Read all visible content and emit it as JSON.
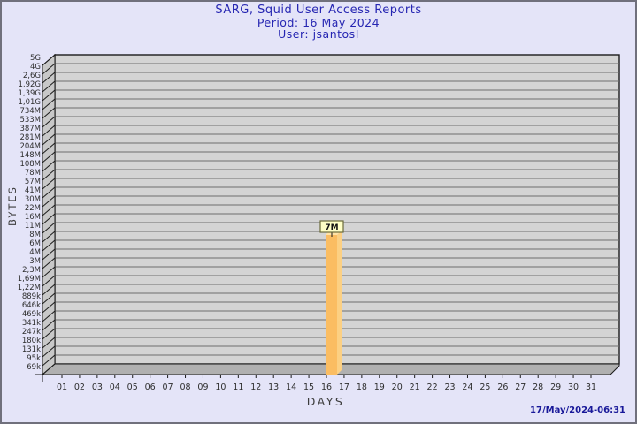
{
  "chart_data": {
    "type": "bar",
    "title": "SARG, Squid User Access Reports",
    "subtitle": "Period: 16 May 2024",
    "user_line": "User: jsantosI",
    "xlabel": "DAYS",
    "ylabel": "BYTES",
    "x_categories": [
      "01",
      "02",
      "03",
      "04",
      "05",
      "06",
      "07",
      "08",
      "09",
      "10",
      "11",
      "12",
      "13",
      "14",
      "15",
      "16",
      "17",
      "18",
      "19",
      "20",
      "21",
      "22",
      "23",
      "24",
      "25",
      "26",
      "27",
      "28",
      "29",
      "30",
      "31"
    ],
    "y_ticks": [
      "5G",
      "4G",
      "2,6G",
      "1,92G",
      "1,39G",
      "1,01G",
      "734M",
      "533M",
      "387M",
      "281M",
      "204M",
      "148M",
      "108M",
      "78M",
      "57M",
      "41M",
      "30M",
      "22M",
      "16M",
      "11M",
      "8M",
      "6M",
      "4M",
      "3M",
      "2,3M",
      "1,69M",
      "1,22M",
      "889k",
      "646k",
      "469k",
      "341k",
      "247k",
      "180k",
      "131k",
      "95k",
      "69k"
    ],
    "bars": [
      {
        "x": "16",
        "value_label": "7M"
      }
    ],
    "grid": "horizontal",
    "legend": "none",
    "style": "3d-bar"
  },
  "footer": {
    "generated": "17/May/2024-06:31"
  },
  "colors": {
    "page_bg": "#e4e4f8",
    "frame_border": "#70707c",
    "plot_bg": "#d4d4d4",
    "gridline": "#6e6e6e",
    "plot_border": "#1a1a1a",
    "wall": "#c8c8c8",
    "floor": "#b0b0b0",
    "bar_front": "#fbbd62",
    "bar_side": "#fcd083",
    "bar_top": "#ffe2a6",
    "value_box_bg": "#ffffc6",
    "value_box_border": "#6a6a3a",
    "title_text": "#2626b2",
    "timestamp_text": "#181899",
    "axis_text": "#2e2e2e"
  }
}
